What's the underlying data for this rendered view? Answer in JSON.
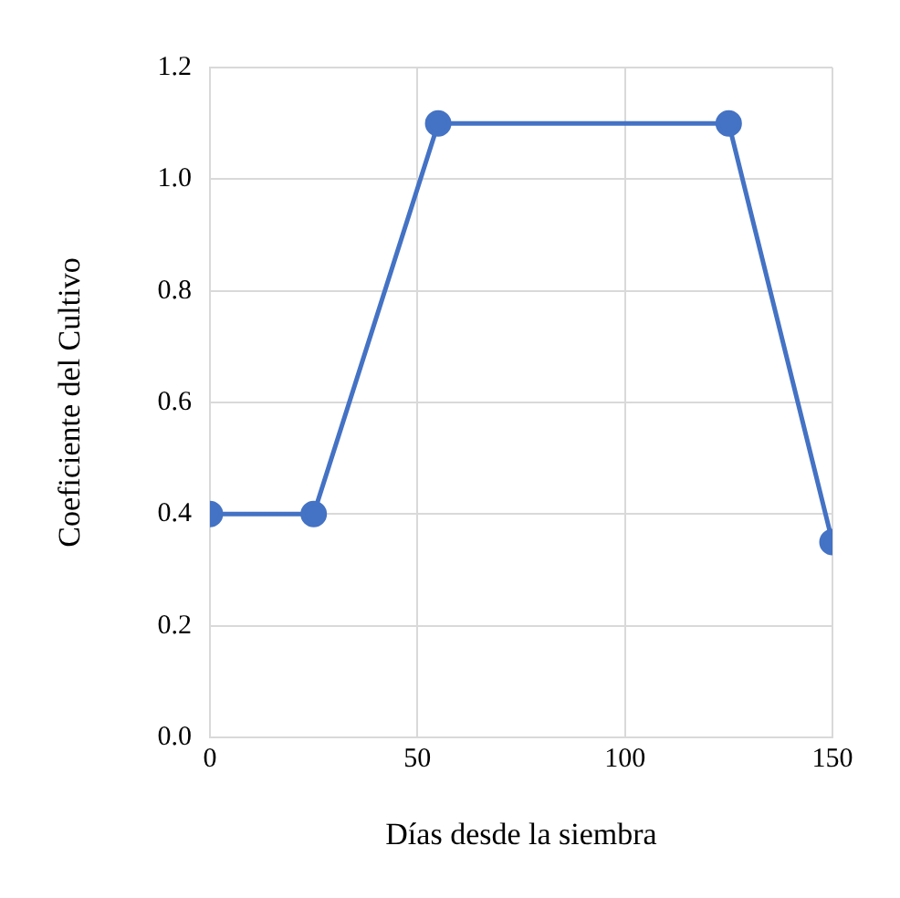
{
  "chart_data": {
    "type": "line",
    "xlabel": "Días desde la siembra",
    "ylabel": "Coeficiente del Cultivo",
    "x": [
      0,
      25,
      55,
      125,
      150
    ],
    "series": [
      {
        "color": "#4472c4",
        "values": [
          0.4,
          0.4,
          1.1,
          1.1,
          0.35
        ]
      }
    ],
    "xlim": [
      0,
      150
    ],
    "xticks": [
      0,
      50,
      100,
      150
    ],
    "ylim": [
      0,
      1.2
    ],
    "yticks": [
      {
        "value": 0,
        "label": "0.0"
      },
      0.2,
      0.4,
      0.6,
      0.8,
      {
        "value": 1,
        "label": "1.0"
      },
      1.2
    ],
    "grid": true,
    "marker": "circle",
    "line_style": "solid",
    "legend": false
  }
}
